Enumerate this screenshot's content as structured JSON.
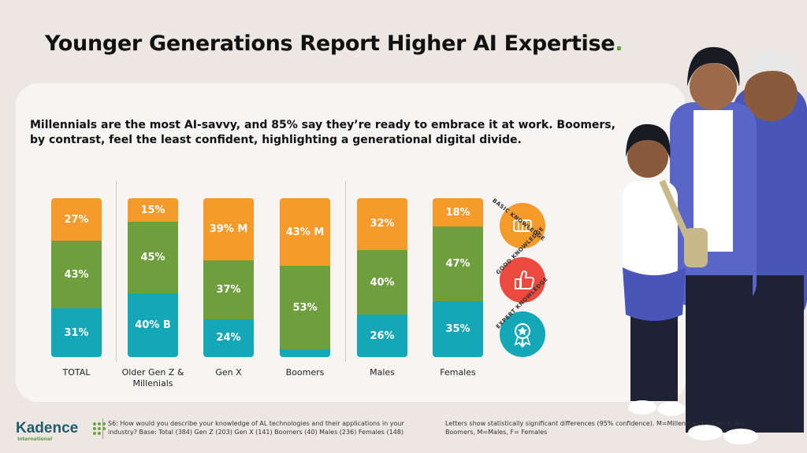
{
  "title": "Younger Generations Report Higher AI Expertise",
  "title_dot": ".",
  "subtitle": "Millennials are the most AI-savvy, and 85% say they’re ready to embrace it at work. Boomers, by contrast, feel the least confident, highlighting a generational digital divide.",
  "colors": {
    "basic": "#f69a2b",
    "good": "#6f9f3d",
    "expert": "#14a7b7"
  },
  "chart_data": {
    "type": "bar",
    "stacked": true,
    "categories": [
      "TOTAL",
      "Older Gen Z & Millenials",
      "Gen X",
      "Boomers",
      "Males",
      "Females"
    ],
    "series": [
      {
        "name": "EXPERT KNOWLEDGE",
        "values": [
          31,
          40,
          24,
          5,
          26,
          35
        ],
        "labels": [
          "31%",
          "40% B",
          "24%",
          "5%",
          "26%",
          "35%"
        ]
      },
      {
        "name": "GOOD KNOWLEDGE",
        "values": [
          43,
          45,
          37,
          53,
          40,
          47
        ],
        "labels": [
          "43%",
          "45%",
          "37%",
          "53%",
          "40%",
          "47%"
        ]
      },
      {
        "name": "BASIC KNOWLEDGE",
        "values": [
          27,
          15,
          39,
          43,
          32,
          18
        ],
        "labels": [
          "27%",
          "15%",
          "39% M",
          "43% M",
          "32%",
          "18%"
        ]
      }
    ],
    "legend_position": "right"
  },
  "footer": {
    "question": "S6: How would you describe your knowledge of AL technologies and their applications in your industry? Base: Total (384) Gen Z (203) Gen X (141) Boomers (40) Males (236) Females (148)",
    "note": "Letters show statistically significant differences (95% confidence). M=Millenials, X= Gen X, B= Boomers, M=Males, F= Females"
  },
  "logo": {
    "name": "Kadence",
    "sub": "International"
  }
}
